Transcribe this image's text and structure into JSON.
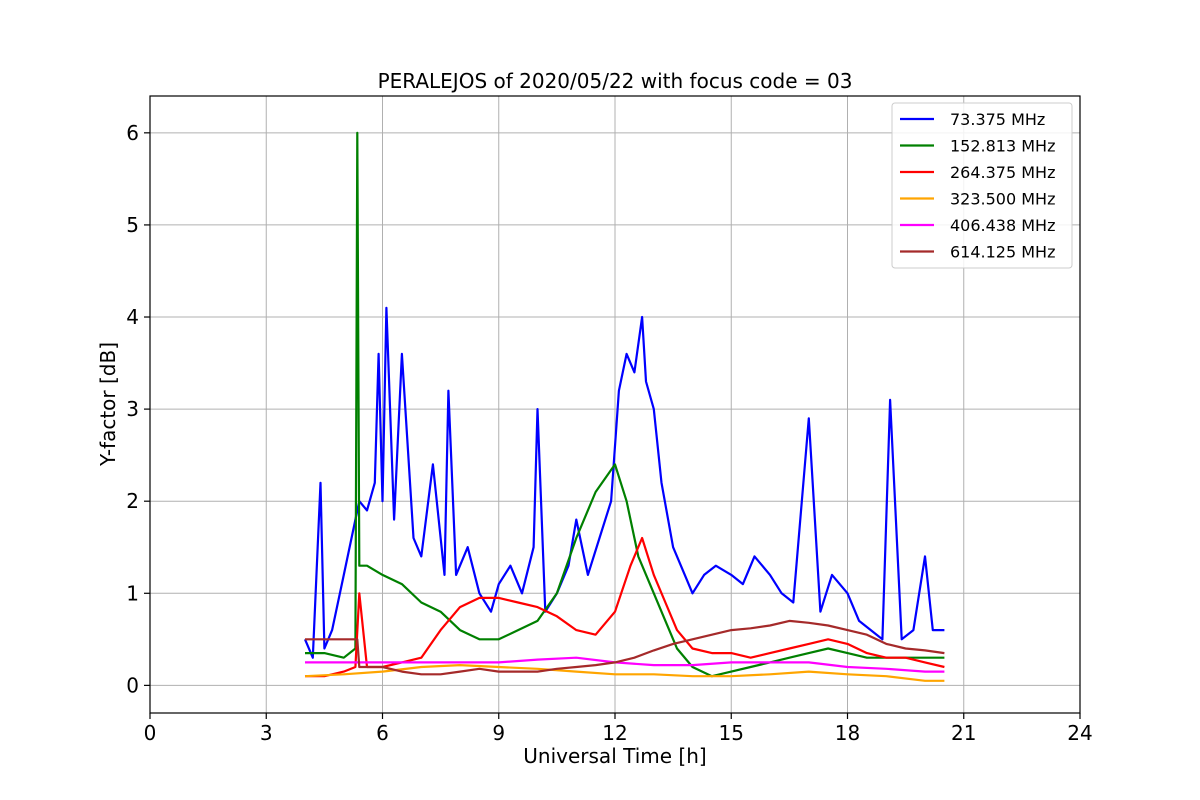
{
  "chart_data": {
    "type": "line",
    "title": "PERALEJOS of 2020/05/22 with focus code = 03",
    "xlabel": "Universal Time [h]",
    "ylabel": "Y-factor [dB]",
    "xlim": [
      0,
      24
    ],
    "ylim": [
      -0.3,
      6.4
    ],
    "xticks": [
      0,
      3,
      6,
      9,
      12,
      15,
      18,
      21,
      24
    ],
    "yticks": [
      0,
      1,
      2,
      3,
      4,
      5,
      6
    ],
    "grid": true,
    "legend_position": "top-right",
    "series": [
      {
        "name": " 73.375 MHz",
        "color": "#0000ff",
        "x": [
          4.0,
          4.2,
          4.4,
          4.5,
          4.7,
          5.0,
          5.3,
          5.4,
          5.6,
          5.8,
          5.9,
          6.0,
          6.1,
          6.3,
          6.5,
          6.8,
          7.0,
          7.3,
          7.6,
          7.7,
          7.9,
          8.2,
          8.5,
          8.8,
          9.0,
          9.3,
          9.6,
          9.9,
          10.0,
          10.2,
          10.5,
          10.8,
          11.0,
          11.3,
          11.6,
          11.9,
          12.1,
          12.3,
          12.5,
          12.7,
          12.8,
          13.0,
          13.2,
          13.5,
          13.8,
          14.0,
          14.3,
          14.6,
          15.0,
          15.3,
          15.6,
          16.0,
          16.3,
          16.6,
          17.0,
          17.3,
          17.6,
          18.0,
          18.3,
          18.6,
          18.9,
          19.1,
          19.4,
          19.7,
          20.0,
          20.2,
          20.5
        ],
        "y": [
          0.5,
          0.3,
          2.2,
          0.4,
          0.6,
          1.2,
          1.8,
          2.0,
          1.9,
          2.2,
          3.6,
          2.0,
          4.1,
          1.8,
          3.6,
          1.6,
          1.4,
          2.4,
          1.2,
          3.2,
          1.2,
          1.5,
          1.0,
          0.8,
          1.1,
          1.3,
          1.0,
          1.5,
          3.0,
          0.8,
          1.0,
          1.3,
          1.8,
          1.2,
          1.6,
          2.0,
          3.2,
          3.6,
          3.4,
          4.0,
          3.3,
          3.0,
          2.2,
          1.5,
          1.2,
          1.0,
          1.2,
          1.3,
          1.2,
          1.1,
          1.4,
          1.2,
          1.0,
          0.9,
          2.9,
          0.8,
          1.2,
          1.0,
          0.7,
          0.6,
          0.5,
          3.1,
          0.5,
          0.6,
          1.4,
          0.6,
          0.6
        ]
      },
      {
        "name": "152.813 MHz",
        "color": "#008000",
        "x": [
          4.0,
          4.5,
          5.0,
          5.3,
          5.35,
          5.4,
          5.6,
          6.0,
          6.5,
          7.0,
          7.5,
          8.0,
          8.5,
          9.0,
          9.5,
          10.0,
          10.5,
          11.0,
          11.5,
          12.0,
          12.3,
          12.6,
          13.0,
          13.3,
          13.6,
          14.0,
          14.5,
          15.0,
          15.5,
          16.0,
          16.5,
          17.0,
          17.5,
          18.0,
          18.5,
          19.0,
          19.5,
          20.0,
          20.5
        ],
        "y": [
          0.35,
          0.35,
          0.3,
          0.4,
          6.0,
          1.3,
          1.3,
          1.2,
          1.1,
          0.9,
          0.8,
          0.6,
          0.5,
          0.5,
          0.6,
          0.7,
          1.0,
          1.6,
          2.1,
          2.4,
          2.0,
          1.4,
          1.0,
          0.7,
          0.4,
          0.2,
          0.1,
          0.15,
          0.2,
          0.25,
          0.3,
          0.35,
          0.4,
          0.35,
          0.3,
          0.3,
          0.3,
          0.3,
          0.3
        ]
      },
      {
        "name": "264.375 MHz",
        "color": "#ff0000",
        "x": [
          4.0,
          4.5,
          5.0,
          5.3,
          5.4,
          5.6,
          6.0,
          6.5,
          7.0,
          7.5,
          8.0,
          8.5,
          9.0,
          9.5,
          10.0,
          10.5,
          11.0,
          11.5,
          12.0,
          12.4,
          12.7,
          13.0,
          13.3,
          13.6,
          14.0,
          14.5,
          15.0,
          15.5,
          16.0,
          16.5,
          17.0,
          17.5,
          18.0,
          18.5,
          19.0,
          19.5,
          20.0,
          20.5
        ],
        "y": [
          0.1,
          0.1,
          0.15,
          0.2,
          1.0,
          0.2,
          0.2,
          0.25,
          0.3,
          0.6,
          0.85,
          0.95,
          0.95,
          0.9,
          0.85,
          0.75,
          0.6,
          0.55,
          0.8,
          1.3,
          1.6,
          1.2,
          0.9,
          0.6,
          0.4,
          0.35,
          0.35,
          0.3,
          0.35,
          0.4,
          0.45,
          0.5,
          0.45,
          0.35,
          0.3,
          0.3,
          0.25,
          0.2
        ]
      },
      {
        "name": "323.500 MHz",
        "color": "#ffa500",
        "x": [
          4.0,
          5.0,
          6.0,
          7.0,
          8.0,
          9.0,
          10.0,
          11.0,
          12.0,
          13.0,
          14.0,
          15.0,
          16.0,
          17.0,
          18.0,
          19.0,
          20.0,
          20.5
        ],
        "y": [
          0.1,
          0.12,
          0.15,
          0.2,
          0.22,
          0.2,
          0.18,
          0.15,
          0.12,
          0.12,
          0.1,
          0.1,
          0.12,
          0.15,
          0.12,
          0.1,
          0.05,
          0.05
        ]
      },
      {
        "name": "406.438 MHz",
        "color": "#ff00ff",
        "x": [
          4.0,
          5.0,
          6.0,
          7.0,
          8.0,
          9.0,
          10.0,
          11.0,
          12.0,
          13.0,
          14.0,
          15.0,
          16.0,
          17.0,
          18.0,
          19.0,
          20.0,
          20.5
        ],
        "y": [
          0.25,
          0.25,
          0.25,
          0.25,
          0.25,
          0.25,
          0.28,
          0.3,
          0.25,
          0.22,
          0.22,
          0.25,
          0.25,
          0.25,
          0.2,
          0.18,
          0.15,
          0.15
        ]
      },
      {
        "name": "614.125 MHz",
        "color": "#a52a2a",
        "x": [
          4.0,
          4.5,
          5.0,
          5.35,
          5.4,
          6.0,
          6.5,
          7.0,
          7.5,
          8.0,
          8.5,
          9.0,
          9.5,
          10.0,
          10.5,
          11.0,
          11.5,
          12.0,
          12.5,
          13.0,
          13.5,
          14.0,
          14.5,
          15.0,
          15.5,
          16.0,
          16.5,
          17.0,
          17.5,
          18.0,
          18.5,
          19.0,
          19.5,
          20.0,
          20.5
        ],
        "y": [
          0.5,
          0.5,
          0.5,
          0.5,
          0.2,
          0.2,
          0.15,
          0.12,
          0.12,
          0.15,
          0.18,
          0.15,
          0.15,
          0.15,
          0.18,
          0.2,
          0.22,
          0.25,
          0.3,
          0.38,
          0.45,
          0.5,
          0.55,
          0.6,
          0.62,
          0.65,
          0.7,
          0.68,
          0.65,
          0.6,
          0.55,
          0.45,
          0.4,
          0.38,
          0.35
        ]
      }
    ]
  }
}
